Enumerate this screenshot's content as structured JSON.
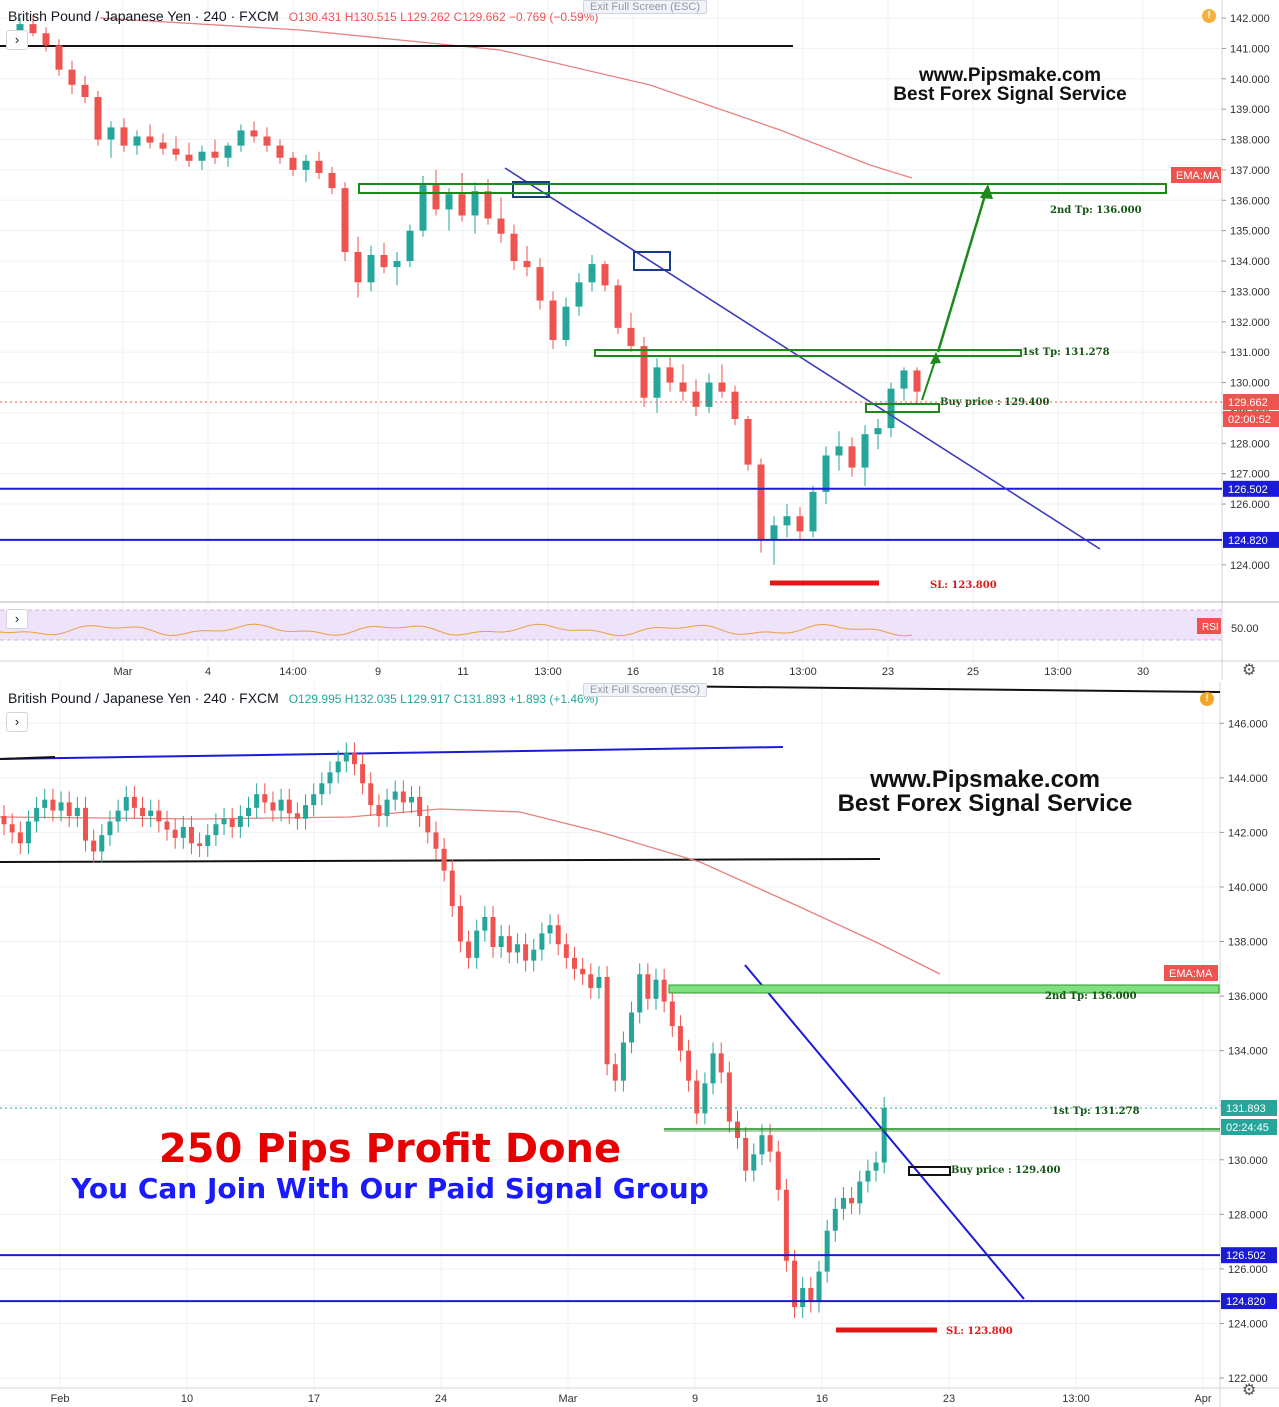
{
  "colors": {
    "up": "#26a69a",
    "down": "#ef5350",
    "zone_green": "#1b8a1b",
    "trend_blue": "#3b3bc4",
    "hline_blue": "#1b1bd6",
    "sl_red": "#e01818",
    "ema": "#e88080",
    "grid": "#eef0f4",
    "axis_text": "#333333"
  },
  "top": {
    "header": {
      "symbol": "British Pound / Japanese Yen · 240 · FXCM",
      "open": "O130.431",
      "high": "H130.515",
      "low": "L129.262",
      "close": "C129.662",
      "change": "−0.769 (−0.59%)"
    },
    "exit_fullscreen": "Exit Full Screen (ESC)",
    "watermark_line1": "www.Pipsmake.com",
    "watermark_line2": "Best Forex Signal Service",
    "rsi_label": "RSI",
    "rsi_value": "50.00"
  },
  "bottom": {
    "header": {
      "symbol": "British Pound / Japanese Yen · 240 · FXCM",
      "open": "O129.995",
      "high": "H132.035",
      "low": "L129.917",
      "close": "C131.893",
      "change": "+1.893 (+1.46%)"
    },
    "exit_fullscreen": "Exit Full Screen (ESC)",
    "watermark_line1": "www.Pipsmake.com",
    "watermark_line2": "Best Forex Signal Service",
    "promo_line1": "250 Pips Profit Done",
    "promo_line2": "You Can Join With Our Paid Signal Group"
  },
  "chart_data": [
    {
      "type": "candlestick",
      "title": "British Pound / Japanese Yen · 240 · FXCM",
      "timeframe": "240",
      "ylim": [
        123.5,
        142.1
      ],
      "y_ticks": [
        "124.000",
        "126.000",
        "127.000",
        "128.000",
        "129.000",
        "130.000",
        "131.000",
        "132.000",
        "133.000",
        "134.000",
        "135.000",
        "136.000",
        "137.000",
        "138.000",
        "139.000",
        "140.000",
        "141.000",
        "142.000"
      ],
      "x_ticks": [
        "Mar",
        "4",
        "14:00",
        "9",
        "11",
        "13:00",
        "16",
        "18",
        "13:00",
        "23",
        "25",
        "13:00",
        "30"
      ],
      "price_labels": [
        {
          "value": 129.662,
          "text": "129.662",
          "color": "#ef5350"
        },
        {
          "value": 129.3,
          "text": "02:00:52",
          "color": "#ef5350"
        },
        {
          "value": 126.502,
          "text": "126.502",
          "color": "#1b1bd6"
        },
        {
          "value": 124.82,
          "text": "124.820",
          "color": "#1b1bd6"
        }
      ],
      "horizontal_levels": [
        {
          "name": "blue-level-high",
          "value": 126.502
        },
        {
          "name": "blue-level-low",
          "value": 124.82
        },
        {
          "name": "black-level",
          "value": 141.0
        }
      ],
      "annotations": [
        {
          "text": "2nd Tp: 136.000",
          "value": 136.0
        },
        {
          "text": "1st Tp: 131.278",
          "value": 131.278
        },
        {
          "text": "Buy price : 129.400",
          "value": 129.4
        },
        {
          "text": "SL: 123.800",
          "value": 123.8
        }
      ],
      "indicators": [
        "EMA:MA"
      ],
      "candles": [
        [
          141.6,
          142.0,
          141.3,
          141.8
        ],
        [
          141.8,
          142.1,
          141.4,
          141.5
        ],
        [
          141.5,
          141.7,
          140.9,
          141.1
        ],
        [
          141.1,
          141.3,
          140.1,
          140.3
        ],
        [
          140.3,
          140.6,
          139.5,
          139.8
        ],
        [
          139.8,
          140.1,
          139.2,
          139.4
        ],
        [
          139.4,
          139.6,
          137.8,
          138.0
        ],
        [
          138.0,
          138.6,
          137.4,
          138.4
        ],
        [
          138.4,
          138.7,
          137.6,
          137.8
        ],
        [
          137.8,
          138.3,
          137.5,
          138.1
        ],
        [
          138.1,
          138.5,
          137.7,
          137.9
        ],
        [
          137.9,
          138.2,
          137.5,
          137.7
        ],
        [
          137.7,
          138.1,
          137.3,
          137.5
        ],
        [
          137.5,
          137.9,
          137.1,
          137.3
        ],
        [
          137.3,
          137.8,
          137.0,
          137.6
        ],
        [
          137.6,
          138.0,
          137.2,
          137.4
        ],
        [
          137.4,
          137.9,
          137.1,
          137.8
        ],
        [
          137.8,
          138.5,
          137.6,
          138.3
        ],
        [
          138.3,
          138.6,
          137.9,
          138.1
        ],
        [
          138.1,
          138.4,
          137.6,
          137.8
        ],
        [
          137.8,
          138.0,
          137.2,
          137.4
        ],
        [
          137.4,
          137.6,
          136.8,
          137.0
        ],
        [
          137.0,
          137.5,
          136.6,
          137.3
        ],
        [
          137.3,
          137.6,
          136.7,
          136.9
        ],
        [
          136.9,
          137.1,
          136.2,
          136.4
        ],
        [
          136.4,
          136.6,
          134.0,
          134.3
        ],
        [
          134.3,
          134.8,
          132.8,
          133.3
        ],
        [
          133.3,
          134.5,
          133.0,
          134.2
        ],
        [
          134.2,
          134.6,
          133.6,
          133.8
        ],
        [
          133.8,
          134.3,
          133.2,
          134.0
        ],
        [
          134.0,
          135.2,
          133.8,
          135.0
        ],
        [
          135.0,
          136.8,
          134.8,
          136.5
        ],
        [
          136.5,
          137.0,
          135.5,
          135.7
        ],
        [
          135.7,
          136.4,
          135.0,
          136.2
        ],
        [
          136.2,
          136.9,
          135.3,
          135.5
        ],
        [
          135.5,
          136.6,
          134.9,
          136.3
        ],
        [
          136.3,
          136.7,
          135.2,
          135.4
        ],
        [
          135.4,
          136.1,
          134.6,
          134.9
        ],
        [
          134.9,
          135.2,
          133.7,
          134.0
        ],
        [
          134.0,
          134.5,
          133.5,
          133.8
        ],
        [
          133.8,
          134.1,
          132.4,
          132.7
        ],
        [
          132.7,
          133.0,
          131.1,
          131.4
        ],
        [
          131.4,
          132.8,
          131.2,
          132.5
        ],
        [
          132.5,
          133.6,
          132.2,
          133.3
        ],
        [
          133.3,
          134.2,
          133.0,
          133.9
        ],
        [
          133.9,
          134.0,
          133.0,
          133.2
        ],
        [
          133.2,
          133.4,
          131.6,
          131.8
        ],
        [
          131.8,
          132.3,
          131.0,
          131.2
        ],
        [
          131.2,
          131.5,
          129.2,
          129.5
        ],
        [
          129.5,
          130.8,
          129.0,
          130.5
        ],
        [
          130.5,
          130.9,
          129.7,
          130.0
        ],
        [
          130.0,
          130.6,
          129.4,
          129.7
        ],
        [
          129.7,
          130.1,
          128.9,
          129.2
        ],
        [
          129.2,
          130.3,
          129.0,
          130.0
        ],
        [
          130.0,
          130.6,
          129.5,
          129.7
        ],
        [
          129.7,
          129.9,
          128.6,
          128.8
        ],
        [
          128.8,
          128.9,
          127.1,
          127.3
        ],
        [
          127.3,
          127.5,
          124.4,
          124.8
        ],
        [
          124.8,
          125.6,
          124.0,
          125.3
        ],
        [
          125.3,
          126.0,
          124.9,
          125.6
        ],
        [
          125.6,
          125.9,
          124.8,
          125.1
        ],
        [
          125.1,
          126.6,
          124.9,
          126.4
        ],
        [
          126.4,
          127.9,
          126.0,
          127.6
        ],
        [
          127.6,
          128.4,
          127.1,
          127.9
        ],
        [
          127.9,
          128.2,
          126.9,
          127.2
        ],
        [
          127.2,
          128.6,
          126.6,
          128.3
        ],
        [
          128.3,
          128.8,
          127.8,
          128.5
        ],
        [
          128.5,
          130.0,
          128.2,
          129.8
        ],
        [
          129.8,
          130.5,
          129.4,
          130.4
        ],
        [
          130.4,
          130.5,
          129.3,
          129.7
        ]
      ]
    },
    {
      "type": "candlestick",
      "title": "British Pound / Japanese Yen · 240 · FXCM",
      "timeframe": "240",
      "ylim": [
        122.0,
        147.0
      ],
      "y_ticks": [
        "122.000",
        "124.000",
        "126.000",
        "128.000",
        "130.000",
        "132.000",
        "134.000",
        "136.000",
        "138.000",
        "140.000",
        "142.000",
        "144.000",
        "146.000"
      ],
      "x_ticks": [
        "Feb",
        "10",
        "17",
        "24",
        "Mar",
        "9",
        "16",
        "23",
        "13:00",
        "Apr"
      ],
      "price_labels": [
        {
          "value": 131.893,
          "text": "131.893",
          "color": "#26a69a"
        },
        {
          "value": 131.3,
          "text": "02:24:45",
          "color": "#26a69a"
        },
        {
          "value": 126.502,
          "text": "126.502",
          "color": "#1b1bd6"
        },
        {
          "value": 124.82,
          "text": "124.820",
          "color": "#1b1bd6"
        }
      ],
      "horizontal_levels": [
        {
          "name": "blue-level-high",
          "value": 126.502
        },
        {
          "name": "blue-level-low",
          "value": 124.82
        }
      ],
      "annotations": [
        {
          "text": "2nd Tp: 136.000",
          "value": 136.0
        },
        {
          "text": "1st Tp: 131.278",
          "value": 131.278
        },
        {
          "text": "Buy price : 129.400",
          "value": 129.4
        },
        {
          "text": "SL: 123.800",
          "value": 123.8
        }
      ],
      "indicators": [
        "EMA:MA"
      ],
      "closes": [
        142.3,
        142.0,
        141.6,
        142.4,
        142.9,
        143.2,
        142.8,
        143.1,
        142.6,
        142.9,
        141.7,
        141.3,
        141.9,
        142.4,
        142.8,
        143.3,
        142.9,
        142.6,
        142.8,
        142.4,
        142.1,
        141.8,
        142.2,
        141.6,
        141.5,
        141.9,
        142.3,
        142.5,
        142.2,
        142.6,
        142.9,
        143.4,
        143.1,
        142.8,
        143.2,
        142.7,
        142.5,
        143.0,
        143.4,
        143.8,
        144.2,
        144.6,
        144.9,
        144.5,
        143.8,
        143.0,
        142.6,
        143.2,
        143.5,
        143.1,
        143.3,
        142.6,
        142.0,
        141.4,
        140.6,
        139.3,
        138.0,
        137.4,
        138.4,
        138.9,
        137.8,
        138.2,
        137.6,
        137.9,
        137.3,
        137.7,
        138.3,
        138.6,
        137.9,
        137.4,
        137.0,
        136.8,
        136.3,
        136.7,
        133.5,
        132.9,
        134.3,
        135.4,
        136.8,
        135.9,
        136.6,
        135.8,
        134.9,
        134.0,
        132.9,
        131.7,
        132.8,
        133.9,
        133.2,
        131.4,
        130.8,
        129.6,
        130.2,
        130.9,
        130.3,
        128.9,
        126.3,
        124.6,
        125.3,
        124.8,
        125.9,
        127.4,
        128.2,
        128.6,
        128.4,
        129.2,
        129.6,
        129.9,
        131.9
      ]
    }
  ]
}
